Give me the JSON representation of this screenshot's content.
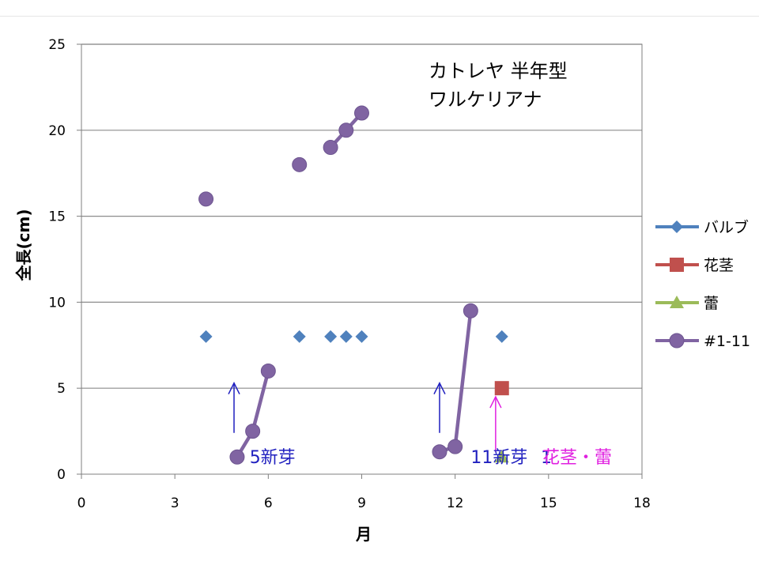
{
  "chart_data": {
    "type": "scatter",
    "title_lines": [
      "カトレヤ  半年型",
      "ワルケリアナ"
    ],
    "xlabel": "月",
    "ylabel": "全長(cm)",
    "xlim": [
      0,
      18
    ],
    "ylim": [
      0,
      25
    ],
    "xticks": [
      0,
      3,
      6,
      9,
      12,
      15,
      18
    ],
    "yticks": [
      0,
      5,
      10,
      15,
      20,
      25
    ],
    "grid": "horizontal",
    "legend_position": "right",
    "series": [
      {
        "name": "バルブ",
        "color": "#4f81bd",
        "marker": "diamond",
        "points": [
          [
            4,
            8
          ],
          [
            7,
            8
          ],
          [
            8,
            8
          ],
          [
            8.5,
            8
          ],
          [
            9,
            8
          ],
          [
            13.5,
            8
          ]
        ]
      },
      {
        "name": "花茎",
        "color": "#c0504d",
        "marker": "square",
        "points": [
          [
            13.5,
            5
          ]
        ]
      },
      {
        "name": "蕾",
        "color": "#9bbb59",
        "marker": "triangle",
        "points": [
          [
            13.5,
            1
          ]
        ]
      },
      {
        "name": "#1-11",
        "color": "#8064a2",
        "marker": "circle",
        "segments": [
          [
            [
              4,
              16
            ]
          ],
          [
            [
              7,
              18
            ]
          ],
          [
            [
              8,
              19
            ],
            [
              8.5,
              20
            ],
            [
              9,
              21
            ]
          ],
          [
            [
              5,
              1
            ],
            [
              5.5,
              2.5
            ],
            [
              6,
              6
            ]
          ],
          [
            [
              11.5,
              1.3
            ],
            [
              12,
              1.6
            ],
            [
              12.5,
              9.5
            ]
          ]
        ]
      }
    ],
    "annotations": [
      {
        "text": "5新芽",
        "x": 5.4,
        "y": 1.0,
        "color": "#1f1fbf"
      },
      {
        "text": "11新芽",
        "x": 12.5,
        "y": 1.0,
        "color": "#1f1fbf"
      },
      {
        "text": "1",
        "x": 14.75,
        "y": 1.0,
        "color": "#1f1fbf"
      },
      {
        "text": "花茎・蕾",
        "x": 14.8,
        "y": 1.0,
        "color": "#e020e0"
      }
    ],
    "arrows": [
      {
        "x": 4.9,
        "y0": 2.4,
        "y1": 5.3,
        "color": "#1f1fbf"
      },
      {
        "x": 11.5,
        "y0": 2.4,
        "y1": 5.3,
        "color": "#1f1fbf"
      },
      {
        "x": 13.3,
        "y0": 1.3,
        "y1": 4.5,
        "color": "#e020e0"
      }
    ]
  }
}
